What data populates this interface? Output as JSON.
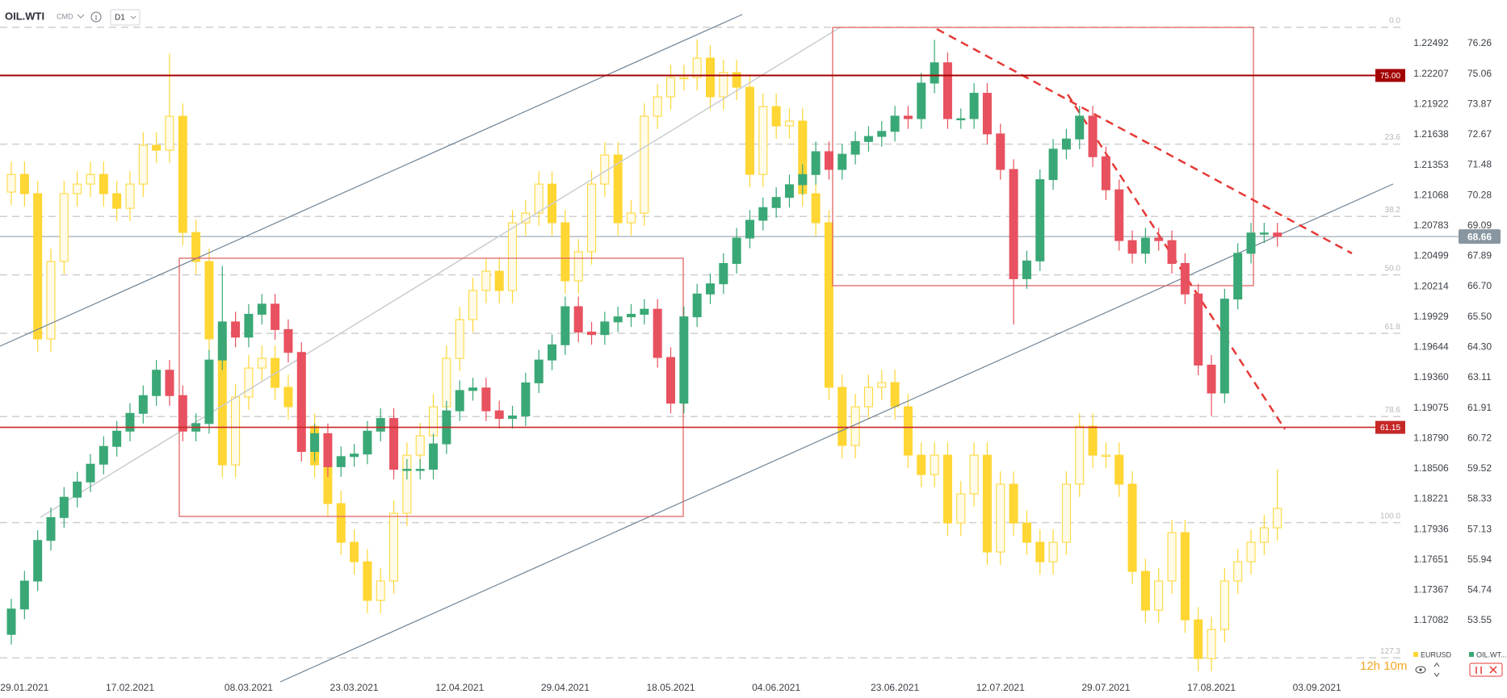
{
  "header": {
    "symbol": "OIL.WTI",
    "market": "CMD",
    "interval": "D1"
  },
  "timer": "12h 10m",
  "chart_data": {
    "type": "candlestick",
    "categories": [
      null,
      "29.01.2021",
      null,
      null,
      null,
      null,
      null,
      null,
      null,
      "17.02.2021",
      null,
      null,
      null,
      null,
      null,
      null,
      null,
      null,
      "08.03.2021",
      null,
      null,
      null,
      null,
      null,
      null,
      null,
      "23.03.2021",
      null,
      null,
      null,
      null,
      null,
      null,
      null,
      "12.04.2021",
      null,
      null,
      null,
      null,
      null,
      null,
      null,
      "29.04.2021",
      null,
      null,
      null,
      null,
      null,
      null,
      null,
      "18.05.2021",
      null,
      null,
      null,
      null,
      null,
      null,
      null,
      "04.06.2021",
      null,
      null,
      null,
      null,
      null,
      null,
      null,
      null,
      "23.06.2021",
      null,
      null,
      null,
      null,
      null,
      null,
      null,
      "12.07.2021",
      null,
      null,
      null,
      null,
      null,
      null,
      null,
      "29.07.2021",
      null,
      null,
      null,
      null,
      null,
      null,
      null,
      "17.08.2021",
      null,
      null,
      null,
      null,
      null,
      null,
      null,
      "03.09.2021"
    ],
    "series": [
      {
        "name": "EURUSD",
        "axis": "y2",
        "color": "#ffd633",
        "hollow_up": true,
        "open": [
          1.211,
          1.21266,
          1.21085,
          1.19723,
          1.20449,
          1.21085,
          1.21175,
          1.21266,
          1.21085,
          1.20948,
          1.21175,
          1.21539,
          1.21493,
          1.21811,
          1.20721,
          1.20449,
          1.19723,
          1.18542,
          1.19178,
          1.1945,
          1.19541,
          1.19269,
          1.19087,
          1.18905,
          1.18542,
          1.18179,
          1.17816,
          1.17634,
          1.17271,
          1.17453,
          1.18088,
          1.18633,
          1.18815,
          1.19087,
          1.19541,
          1.19904,
          1.20177,
          1.20358,
          1.20177,
          1.20812,
          1.20903,
          1.21175,
          1.20812,
          1.20267,
          1.2054,
          1.21175,
          1.21448,
          1.20812,
          1.20903,
          1.21811,
          1.21993,
          1.22174,
          1.22174,
          1.22356,
          1.21993,
          1.2222,
          1.22083,
          1.21266,
          1.21902,
          1.2172,
          1.21766,
          1.21085,
          1.20812,
          1.19269,
          1.18724,
          1.19087,
          1.19269,
          1.19314,
          1.19087,
          1.18633,
          1.18451,
          1.18633,
          1.17997,
          1.1827,
          1.18633,
          1.17725,
          1.18361,
          1.17997,
          1.17816,
          1.17634,
          1.17816,
          1.18361,
          1.18905,
          1.18633,
          1.18633,
          1.18361,
          1.17543,
          1.1718,
          1.17453,
          1.17907,
          1.17089,
          1.16726,
          1.16999,
          1.17453,
          1.17634,
          1.17816,
          1.17952,
          null,
          null,
          null
        ],
        "high": [
          1.21386,
          1.21386,
          1.21205,
          1.20569,
          1.21205,
          1.21295,
          1.21386,
          1.21386,
          1.21205,
          1.21295,
          1.21659,
          1.21659,
          1.224,
          1.21931,
          1.20841,
          1.20569,
          1.19843,
          1.19298,
          1.1957,
          1.19661,
          1.19661,
          1.19389,
          1.19207,
          1.19025,
          1.18662,
          1.18299,
          1.17936,
          1.17754,
          1.17573,
          1.18208,
          1.18753,
          1.18935,
          1.19207,
          1.19661,
          1.20024,
          1.20297,
          1.20478,
          1.20478,
          1.20932,
          1.21023,
          1.21295,
          1.21295,
          1.20932,
          1.2066,
          1.21295,
          1.21568,
          1.21568,
          1.21023,
          1.21931,
          1.22113,
          1.22294,
          1.22294,
          1.2253,
          1.22476,
          1.2234,
          1.2234,
          1.22203,
          1.22022,
          1.22022,
          1.21886,
          1.21886,
          1.21205,
          1.20932,
          1.19389,
          1.19207,
          1.19389,
          1.19434,
          1.19434,
          1.19207,
          1.18753,
          1.18753,
          1.18753,
          1.1839,
          1.18753,
          1.18753,
          1.18481,
          1.18481,
          1.18117,
          1.17936,
          1.17936,
          1.18481,
          1.19025,
          1.19025,
          1.18753,
          1.18753,
          1.18481,
          1.17663,
          1.17573,
          1.18027,
          1.18027,
          1.17209,
          1.17119,
          1.17573,
          1.17754,
          1.17936,
          1.18072,
          1.185,
          null,
          null,
          null
        ],
        "low": [
          1.2098,
          1.20965,
          1.19603,
          1.19603,
          1.20329,
          1.20965,
          1.21055,
          1.20965,
          1.20828,
          1.20828,
          1.21055,
          1.21373,
          1.21373,
          1.20601,
          1.20329,
          1.19603,
          1.18422,
          1.18422,
          1.19058,
          1.1933,
          1.19149,
          1.18967,
          1.18785,
          1.18422,
          1.18059,
          1.17696,
          1.17514,
          1.17151,
          1.17151,
          1.17333,
          1.17968,
          1.18513,
          1.18695,
          1.18967,
          1.19421,
          1.19784,
          1.20057,
          1.20057,
          1.20057,
          1.20692,
          1.20783,
          1.20692,
          1.20147,
          1.20147,
          1.2042,
          1.21055,
          1.20692,
          1.20692,
          1.20783,
          1.21691,
          1.21873,
          1.22054,
          1.22054,
          1.21873,
          1.21873,
          1.21963,
          1.21146,
          1.21146,
          1.216,
          1.216,
          1.20965,
          1.20692,
          1.19149,
          1.18604,
          1.18604,
          1.18967,
          1.19149,
          1.18967,
          1.18513,
          1.18331,
          1.18331,
          1.17877,
          1.17877,
          1.1815,
          1.17605,
          1.17605,
          1.17877,
          1.17696,
          1.17514,
          1.17514,
          1.17696,
          1.18241,
          1.18513,
          1.18513,
          1.18241,
          1.17423,
          1.1706,
          1.1706,
          1.17333,
          1.16969,
          1.16606,
          1.16606,
          1.16879,
          1.17333,
          1.17514,
          1.17696,
          1.17832,
          null,
          null,
          null
        ],
        "close": [
          1.21266,
          1.21085,
          1.19723,
          1.20449,
          1.21085,
          1.21175,
          1.21266,
          1.21085,
          1.20948,
          1.21175,
          1.21539,
          1.21493,
          1.21811,
          1.20721,
          1.20449,
          1.19723,
          1.18542,
          1.19178,
          1.1945,
          1.19541,
          1.19269,
          1.19087,
          1.18905,
          1.18542,
          1.18179,
          1.17816,
          1.17634,
          1.17271,
          1.17453,
          1.18088,
          1.18633,
          1.18815,
          1.19087,
          1.19541,
          1.19904,
          1.20177,
          1.20358,
          1.20177,
          1.20812,
          1.20903,
          1.21175,
          1.20812,
          1.20267,
          1.2054,
          1.21175,
          1.21448,
          1.20812,
          1.20903,
          1.21811,
          1.21993,
          1.22174,
          1.22174,
          1.22356,
          1.21993,
          1.2222,
          1.22083,
          1.21266,
          1.21902,
          1.2172,
          1.21766,
          1.21085,
          1.20812,
          1.19269,
          1.18724,
          1.19087,
          1.19269,
          1.19314,
          1.19087,
          1.18633,
          1.18451,
          1.18633,
          1.17997,
          1.1827,
          1.18633,
          1.17725,
          1.18361,
          1.17997,
          1.17816,
          1.17634,
          1.17816,
          1.18361,
          1.18905,
          1.18633,
          1.18633,
          1.18361,
          1.17543,
          1.1718,
          1.17453,
          1.17907,
          1.17089,
          1.16726,
          1.16999,
          1.17453,
          1.17634,
          1.17816,
          1.17952,
          1.18134,
          null,
          null,
          null
        ]
      },
      {
        "name": "OIL.WT...",
        "axis": "y",
        "up_color": "#3aa876",
        "down_color": "#e8515f",
        "open": [
          53.0,
          54.0,
          55.1,
          56.7,
          57.6,
          58.4,
          59.0,
          59.7,
          60.4,
          61.0,
          61.7,
          62.4,
          63.4,
          62.4,
          61.0,
          61.3,
          63.8,
          65.3,
          64.7,
          65.6,
          66.0,
          65.0,
          64.1,
          60.2,
          60.9,
          59.6,
          60.0,
          60.1,
          61.0,
          61.5,
          59.5,
          59.5,
          59.5,
          60.5,
          61.8,
          62.6,
          62.7,
          61.8,
          61.5,
          61.6,
          62.9,
          63.8,
          64.4,
          65.9,
          64.9,
          64.8,
          65.3,
          65.5,
          65.6,
          65.8,
          63.9,
          62.1,
          65.5,
          66.4,
          66.8,
          67.6,
          68.6,
          69.3,
          69.8,
          70.2,
          70.7,
          71.1,
          72.0,
          71.3,
          71.9,
          72.4,
          72.6,
          72.8,
          73.4,
          73.3,
          74.7,
          75.5,
          73.3,
          73.3,
          74.3,
          72.7,
          71.3,
          67.0,
          67.7,
          70.9,
          72.1,
          72.5,
          73.4,
          71.8,
          70.5,
          68.5,
          68.0,
          68.6,
          68.5,
          67.6,
          66.4,
          63.6,
          62.5,
          66.2,
          68.0,
          68.8,
          68.8,
          null,
          null,
          null
        ],
        "high": [
          54.4,
          55.5,
          57.1,
          58.0,
          58.8,
          59.4,
          60.1,
          60.8,
          61.4,
          62.1,
          62.8,
          63.8,
          63.8,
          62.8,
          61.7,
          64.2,
          67.5,
          65.7,
          66.0,
          66.4,
          66.4,
          65.4,
          64.5,
          61.3,
          61.3,
          60.4,
          60.5,
          61.4,
          61.9,
          61.9,
          59.9,
          59.9,
          60.9,
          62.2,
          63.0,
          63.1,
          63.1,
          62.2,
          62.0,
          63.3,
          64.2,
          64.8,
          66.3,
          66.3,
          65.3,
          65.7,
          65.9,
          66.0,
          66.2,
          66.2,
          64.3,
          65.9,
          66.8,
          67.2,
          68.0,
          69.0,
          69.7,
          70.2,
          70.6,
          71.1,
          71.5,
          72.4,
          72.4,
          72.3,
          72.8,
          73.0,
          73.2,
          73.8,
          73.8,
          75.1,
          76.4,
          75.9,
          73.7,
          74.7,
          74.7,
          73.1,
          71.7,
          68.1,
          71.3,
          72.5,
          72.9,
          73.8,
          73.8,
          72.2,
          70.9,
          68.9,
          69.0,
          69.0,
          68.9,
          68.0,
          66.8,
          64.0,
          66.6,
          68.4,
          69.2,
          69.2,
          69.2,
          null,
          null,
          null
        ],
        "low": [
          52.6,
          53.6,
          54.7,
          56.3,
          57.2,
          58.0,
          58.6,
          59.3,
          60.0,
          60.6,
          61.3,
          62.0,
          62.0,
          60.6,
          60.6,
          60.9,
          63.4,
          64.3,
          64.3,
          65.2,
          64.6,
          63.7,
          59.8,
          59.8,
          59.2,
          59.2,
          59.6,
          59.7,
          60.6,
          59.1,
          59.1,
          59.1,
          59.1,
          60.1,
          61.4,
          62.2,
          61.4,
          61.1,
          61.1,
          61.2,
          62.5,
          63.4,
          64.0,
          64.5,
          64.4,
          64.4,
          64.9,
          65.1,
          65.2,
          63.5,
          61.7,
          61.7,
          65.1,
          66.0,
          66.4,
          67.2,
          68.2,
          68.9,
          69.4,
          69.8,
          70.3,
          70.7,
          70.9,
          70.9,
          71.5,
          72.0,
          72.2,
          72.4,
          72.9,
          72.9,
          74.3,
          72.9,
          72.9,
          72.9,
          72.3,
          70.9,
          65.2,
          66.6,
          67.3,
          70.5,
          71.7,
          72.1,
          71.4,
          70.1,
          68.1,
          67.6,
          67.6,
          68.1,
          67.2,
          66.0,
          63.2,
          61.6,
          62.1,
          65.8,
          67.6,
          68.4,
          68.26,
          null,
          null,
          null
        ],
        "close": [
          54.0,
          55.1,
          56.7,
          57.6,
          58.4,
          59.0,
          59.7,
          60.4,
          61.0,
          61.7,
          62.4,
          63.4,
          62.4,
          61.0,
          61.3,
          63.8,
          65.3,
          64.7,
          65.6,
          66.0,
          65.0,
          64.1,
          60.2,
          60.9,
          59.6,
          60.0,
          60.1,
          61.0,
          61.5,
          59.5,
          59.5,
          59.5,
          60.5,
          61.8,
          62.6,
          62.7,
          61.8,
          61.5,
          61.6,
          62.9,
          63.8,
          64.4,
          65.9,
          64.9,
          64.8,
          65.3,
          65.5,
          65.6,
          65.8,
          63.9,
          62.1,
          65.5,
          66.4,
          66.8,
          67.6,
          68.6,
          69.3,
          69.8,
          70.2,
          70.7,
          71.1,
          72.0,
          71.3,
          71.9,
          72.4,
          72.6,
          72.8,
          73.4,
          73.3,
          74.7,
          75.5,
          73.3,
          73.3,
          74.3,
          72.7,
          71.3,
          67.0,
          67.7,
          70.9,
          72.1,
          72.5,
          73.4,
          71.8,
          70.5,
          68.5,
          68.0,
          68.6,
          68.5,
          67.6,
          66.4,
          63.6,
          62.5,
          66.2,
          68.0,
          68.8,
          68.8,
          68.66,
          null,
          null,
          null
        ]
      }
    ],
    "ylim": [
      51.45,
      77.97
    ],
    "yticks": [
      76.26,
      75.06,
      73.87,
      72.67,
      71.48,
      70.28,
      69.09,
      67.89,
      {
        "value": 66.7,
        "label": "66.70"
      },
      {
        "value": 65.5,
        "label": "65.50"
      },
      {
        "value": 64.3,
        "label": "64.30"
      },
      63.11,
      61.91,
      60.72,
      59.52,
      58.33,
      57.13,
      55.94,
      54.74,
      53.55
    ],
    "y2lim": [
      1.16583,
      1.22901
    ],
    "y2ticks": [
      1.22492,
      1.22207,
      1.21922,
      1.21638,
      1.21353,
      1.21068,
      1.20783,
      1.20499,
      1.20214,
      1.19929,
      1.19644,
      {
        "value": 1.1936,
        "label": "1.19360"
      },
      1.19075,
      {
        "value": 1.1879,
        "label": "1.18790"
      },
      1.18506,
      1.18221,
      1.17936,
      1.17651,
      1.17367,
      1.17082
    ],
    "price_lines": [
      {
        "value": 75,
        "label": "75.00",
        "color": "#a30000"
      },
      {
        "value": 61.15,
        "color": "#c62828"
      }
    ],
    "last_price": {
      "value": 68.66,
      "color": "#8796a0"
    },
    "fibonacci": {
      "start": 76.9,
      "end": 57.4,
      "color": "#cfcfcf",
      "levels": [
        {
          "value": 0,
          "label": "0.0"
        },
        23.6,
        38.2,
        {
          "value": 50,
          "label": "50.0"
        },
        61.8,
        78.6,
        {
          "value": 100,
          "label": "100.0"
        },
        127.3
      ]
    }
  }
}
